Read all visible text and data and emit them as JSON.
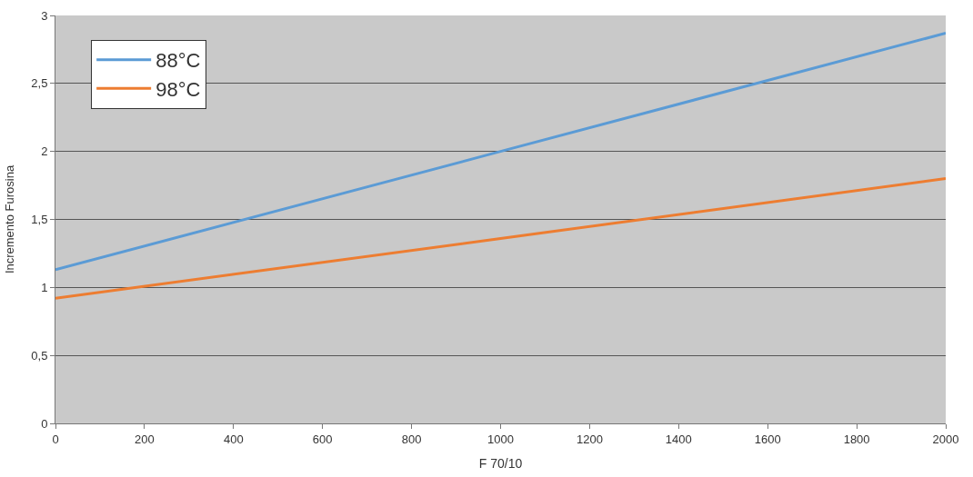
{
  "chart_data": {
    "type": "line",
    "xlabel": "F 70/10",
    "ylabel": "Incremento Furosina",
    "x": [
      0,
      1000,
      2000
    ],
    "series": [
      {
        "name": "88°C",
        "color": "#5b9bd5",
        "values": [
          1.13,
          2.0,
          2.87
        ]
      },
      {
        "name": "98°C",
        "color": "#ed7d31",
        "values": [
          0.92,
          1.36,
          1.8
        ]
      }
    ],
    "xlim": [
      0,
      2000
    ],
    "xticks": [
      0,
      200,
      400,
      600,
      800,
      1000,
      1200,
      1400,
      1600,
      1800,
      2000
    ],
    "ylim": [
      0,
      3
    ],
    "yticks": [
      0,
      {
        "value": 0.5,
        "label": "0,5"
      },
      1,
      {
        "value": 1.5,
        "label": "1,5"
      },
      2,
      {
        "value": 2.5,
        "label": "2,5"
      },
      3
    ],
    "grid": "y",
    "legend": "top left",
    "marker": "none",
    "line_style": "solid"
  }
}
